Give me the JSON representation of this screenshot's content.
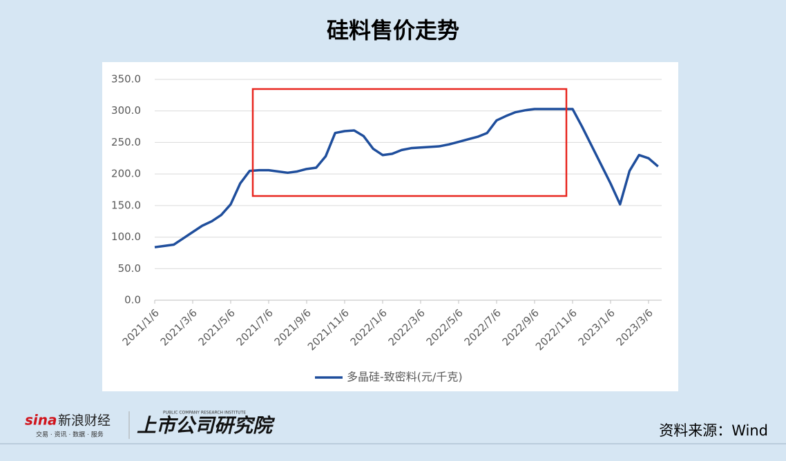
{
  "chart_data": {
    "type": "line",
    "title": "硅料售价走势",
    "categories": [
      "2021/1/6",
      null,
      null,
      null,
      "2021/3/6",
      null,
      null,
      null,
      "2021/5/6",
      null,
      null,
      null,
      "2021/7/6",
      null,
      null,
      null,
      "2021/9/6",
      null,
      null,
      null,
      "2021/11/6",
      null,
      null,
      null,
      "2022/1/6",
      null,
      null,
      null,
      "2022/3/6",
      null,
      null,
      null,
      "2022/5/6",
      null,
      null,
      null,
      "2022/7/6",
      null,
      null,
      null,
      "2022/9/6",
      null,
      null,
      null,
      "2022/11/6",
      null,
      null,
      null,
      "2023/1/6",
      null,
      null,
      null,
      "2023/3/6",
      null
    ],
    "series": [
      {
        "name": "多晶硅-致密料(元/千克)",
        "color": "#1f4e9c",
        "values": [
          84,
          86,
          88,
          98,
          108,
          118,
          125,
          135,
          152,
          185,
          205,
          206,
          206,
          204,
          202,
          204,
          208,
          210,
          228,
          265,
          268,
          269,
          260,
          240,
          230,
          232,
          238,
          241,
          242,
          243,
          244,
          247,
          251,
          255,
          259,
          265,
          285,
          292,
          298,
          301,
          303,
          303,
          303,
          303,
          303,
          275,
          245,
          215,
          185,
          152,
          205,
          230,
          225,
          212
        ]
      }
    ],
    "ylim": [
      0,
      350
    ],
    "yticks": [
      {
        "value": 0,
        "label": "0.0"
      },
      {
        "value": 50,
        "label": "50.0"
      },
      {
        "value": 100,
        "label": "100.0"
      },
      {
        "value": 150,
        "label": "150.0"
      },
      {
        "value": 200,
        "label": "200.0"
      },
      {
        "value": 250,
        "label": "250.0"
      },
      {
        "value": 300,
        "label": "300.0"
      },
      {
        "value": 350,
        "label": "350.0"
      }
    ],
    "grid": true,
    "legend": "bottom"
  },
  "branding": {
    "sina": "sina",
    "name": "新浪财经",
    "tagline": "交易 · 资讯 · 数据 · 服务",
    "institute": "上市公司研究院",
    "institute_en": "PUBLIC COMPANY RESEARCH INSTITUTE"
  },
  "source": "资料来源：Wind"
}
